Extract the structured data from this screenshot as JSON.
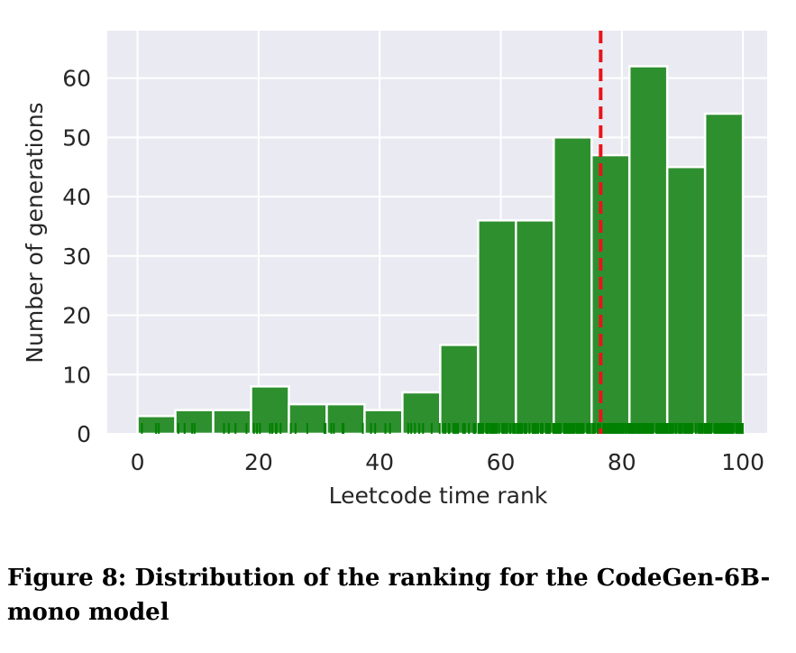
{
  "chart_data": {
    "type": "bar",
    "subtype": "histogram",
    "xlabel": "Leetcode time rank",
    "ylabel": "Number of generations",
    "xlim": [
      -5,
      104
    ],
    "ylim": [
      0,
      68
    ],
    "xticks": [
      0,
      20,
      40,
      60,
      80,
      100
    ],
    "yticks": [
      0,
      10,
      20,
      30,
      40,
      50,
      60
    ],
    "bin_edges": [
      0,
      6.25,
      12.5,
      18.75,
      25,
      31.25,
      37.5,
      43.75,
      50,
      56.25,
      62.5,
      68.75,
      75,
      81.25,
      87.5,
      93.75,
      100
    ],
    "values": [
      3,
      4,
      4,
      8,
      5,
      5,
      4,
      7,
      15,
      36,
      36,
      50,
      47,
      62,
      45,
      54
    ],
    "mean_line": 76.5,
    "rug_note": "tick marks along x-axis at individual rank values",
    "colors": {
      "bar": "#2e8f2e",
      "rug": "#008000",
      "mean_line": "#e8141a",
      "background": "#eaeaf2",
      "grid": "#ffffff"
    }
  },
  "caption": "Figure 8: Distribution of the ranking for the CodeGen-6B-mono model"
}
